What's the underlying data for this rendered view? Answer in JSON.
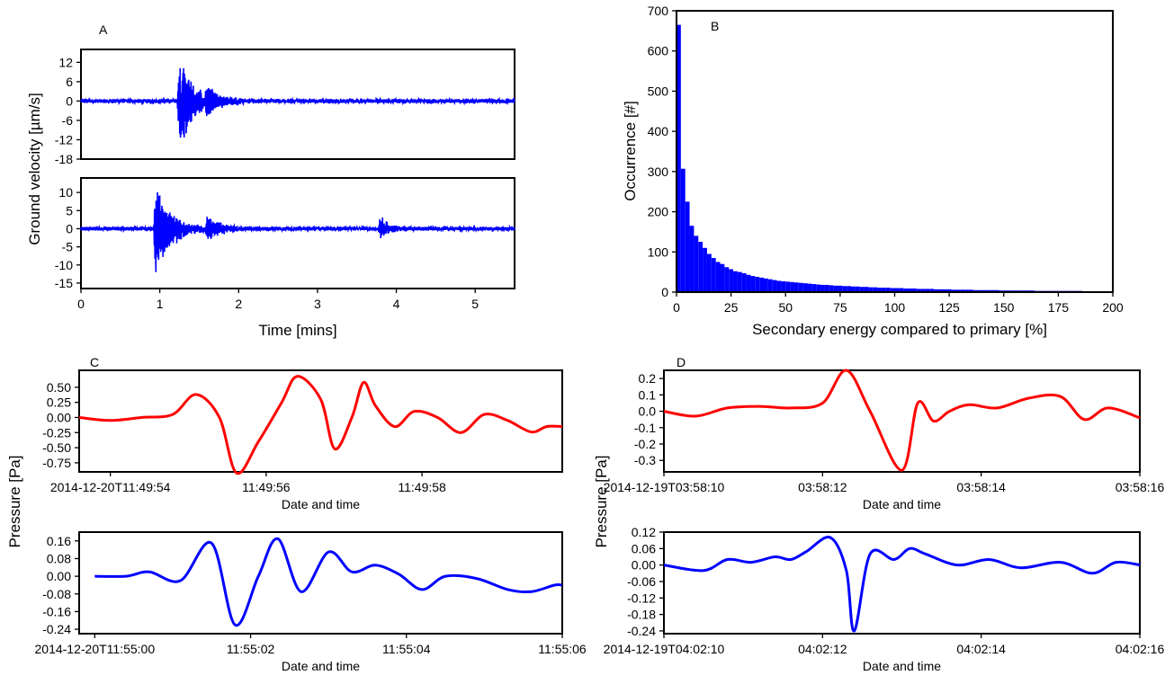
{
  "panels": {
    "a": "A",
    "b": "B",
    "c": "C",
    "d": "D"
  },
  "colors": {
    "blue": "#0000ff",
    "red": "#ff0000",
    "axis": "#000000"
  },
  "chart_data": [
    {
      "id": "A1",
      "type": "line",
      "color": "#0000ff",
      "ylabel": "Ground velocity [µm/s]",
      "xlim": [
        0,
        5.5
      ],
      "ylim": [
        -18,
        16
      ],
      "yticks": [
        -18,
        -12,
        -6,
        0,
        6,
        12
      ],
      "x_unit": "mins",
      "events": [
        {
          "t": 1.25,
          "amp_pos": 14,
          "amp_neg": -17,
          "decay": 0.18
        },
        {
          "t": 1.6,
          "amp_pos": 4,
          "amp_neg": -4,
          "decay": 0.2
        }
      ],
      "noise_amplitude": 0.6
    },
    {
      "id": "A2",
      "type": "line",
      "color": "#0000ff",
      "xlabel": "Time [mins]",
      "xlim": [
        0,
        5.5
      ],
      "ylim": [
        -16.5,
        14
      ],
      "xticks": [
        0,
        1,
        2,
        3,
        4,
        5
      ],
      "yticks": [
        -15,
        -10,
        -5,
        0,
        5,
        10
      ],
      "x_unit": "mins",
      "events": [
        {
          "t": 0.95,
          "amp_pos": 12,
          "amp_neg": -15,
          "decay": 0.2
        },
        {
          "t": 1.6,
          "amp_pos": 3,
          "amp_neg": -3,
          "decay": 0.2
        },
        {
          "t": 3.8,
          "amp_pos": 3.5,
          "amp_neg": -3,
          "decay": 0.12
        }
      ],
      "noise_amplitude": 0.5
    },
    {
      "id": "B",
      "type": "bar",
      "color": "#0000ff",
      "xlabel": "Secondary energy compared to primary [%]",
      "ylabel": "Occurrence [#]",
      "xlim": [
        0,
        200
      ],
      "ylim": [
        0,
        700
      ],
      "xticks": [
        0,
        25,
        50,
        75,
        100,
        125,
        150,
        175,
        200
      ],
      "yticks": [
        0,
        100,
        200,
        300,
        400,
        500,
        600,
        700
      ],
      "bin_width": 2,
      "values": [
        665,
        307,
        225,
        165,
        140,
        125,
        110,
        95,
        85,
        75,
        70,
        62,
        57,
        52,
        50,
        47,
        43,
        40,
        38,
        36,
        34,
        32,
        30,
        28,
        27,
        26,
        25,
        24,
        23,
        22,
        21,
        20,
        19,
        18,
        18,
        17,
        16,
        16,
        15,
        15,
        14,
        14,
        13,
        13,
        12,
        12,
        11,
        11,
        11,
        10,
        10,
        10,
        9,
        9,
        9,
        8,
        8,
        8,
        8,
        7,
        7,
        7,
        7,
        6,
        6,
        6,
        6,
        6,
        5,
        5,
        5,
        5,
        5,
        5,
        4,
        4,
        4,
        4,
        4,
        4,
        4,
        4,
        3,
        3,
        3,
        3,
        3,
        3,
        3,
        3,
        3,
        3,
        3,
        2,
        2,
        2,
        2,
        2,
        2,
        2
      ]
    },
    {
      "id": "C1",
      "type": "line",
      "color": "#ff0000",
      "ylabel": "Pressure [Pa]",
      "xlabel": "Date and time",
      "xlim": [
        -0.2,
        6.0
      ],
      "ylim": [
        -0.9,
        0.78
      ],
      "x_values_unit": "seconds after 2014-12-20T11:49:53.8",
      "x": [
        -0.2,
        0.2,
        0.6,
        1.0,
        1.3,
        1.6,
        1.82,
        2.1,
        2.4,
        2.6,
        2.9,
        3.08,
        3.3,
        3.45,
        3.6,
        3.85,
        4.1,
        4.4,
        4.7,
        5.0,
        5.3,
        5.6,
        5.8,
        6.0
      ],
      "values": [
        0.0,
        -0.05,
        0.0,
        0.05,
        0.38,
        0.0,
        -0.92,
        -0.4,
        0.25,
        0.68,
        0.3,
        -0.52,
        0.0,
        0.58,
        0.2,
        -0.15,
        0.1,
        0.0,
        -0.25,
        0.05,
        -0.05,
        -0.24,
        -0.15,
        -0.15
      ],
      "yticks": [
        -0.75,
        -0.5,
        -0.25,
        0.0,
        0.25,
        0.5
      ],
      "ytick_labels": [
        "-0.75",
        "-0.50",
        "-0.25",
        "0.00",
        "0.25",
        "0.50"
      ],
      "xtick_positions": [
        0.2,
        2.2,
        4.2
      ],
      "xtick_labels": [
        "2014-12-20T11:49:54",
        "11:49:56",
        "11:49:58"
      ]
    },
    {
      "id": "C2",
      "type": "line",
      "color": "#0000ff",
      "xlabel": "Date and time",
      "xlim": [
        -0.2,
        6.0
      ],
      "ylim": [
        -0.26,
        0.2
      ],
      "x_values_unit": "seconds after 2014-12-20T11:55:00",
      "x": [
        0.0,
        0.4,
        0.7,
        1.1,
        1.5,
        1.8,
        2.1,
        2.35,
        2.65,
        3.0,
        3.3,
        3.6,
        3.9,
        4.2,
        4.5,
        4.9,
        5.3,
        5.6,
        5.9,
        6.0
      ],
      "values": [
        0.0,
        0.0,
        0.02,
        -0.02,
        0.15,
        -0.22,
        0.0,
        0.17,
        -0.07,
        0.11,
        0.02,
        0.05,
        0.01,
        -0.06,
        0.0,
        -0.01,
        -0.06,
        -0.07,
        -0.04,
        -0.04
      ],
      "yticks": [
        -0.24,
        -0.16,
        -0.08,
        0.0,
        0.08,
        0.16
      ],
      "ytick_labels": [
        "-0.24",
        "-0.16",
        "-0.08",
        "0.00",
        "0.08",
        "0.16"
      ],
      "xtick_positions": [
        0.0,
        2.0,
        4.0,
        6.0
      ],
      "xtick_labels": [
        "2014-12-20T11:55:00",
        "11:55:02",
        "11:55:04",
        "11:55:06"
      ]
    },
    {
      "id": "D1",
      "type": "line",
      "color": "#ff0000",
      "xlabel": "Date and time",
      "xlim": [
        0.0,
        6.0
      ],
      "ylim": [
        -0.37,
        0.25
      ],
      "x_values_unit": "seconds after 2014-12-19T03:58:10",
      "x": [
        0.0,
        0.4,
        0.8,
        1.2,
        1.6,
        2.0,
        2.3,
        2.6,
        3.0,
        3.2,
        3.4,
        3.6,
        3.85,
        4.2,
        4.6,
        5.0,
        5.3,
        5.6,
        6.0
      ],
      "values": [
        0.0,
        -0.03,
        0.02,
        0.03,
        0.02,
        0.05,
        0.25,
        0.0,
        -0.36,
        0.05,
        -0.06,
        0.0,
        0.04,
        0.02,
        0.08,
        0.09,
        -0.05,
        0.02,
        -0.04
      ],
      "yticks": [
        -0.3,
        -0.2,
        -0.1,
        0.0,
        0.1,
        0.2
      ],
      "ytick_labels": [
        "-0.3",
        "-0.2",
        "-0.1",
        "0.0",
        "0.1",
        "0.2"
      ],
      "xtick_positions": [
        0.0,
        2.0,
        4.0,
        6.0
      ],
      "xtick_labels": [
        "2014-12-19T03:58:10",
        "03:58:12",
        "03:58:14",
        "03:58:16"
      ]
    },
    {
      "id": "D2",
      "type": "line",
      "color": "#0000ff",
      "ylabel": "Pressure [Pa]",
      "xlabel": "Date and time",
      "xlim": [
        0.0,
        6.0
      ],
      "ylim": [
        -0.25,
        0.12
      ],
      "x_values_unit": "seconds after 2014-12-19T04:02:10",
      "x": [
        0.0,
        0.5,
        0.8,
        1.1,
        1.4,
        1.6,
        1.8,
        2.1,
        2.3,
        2.4,
        2.6,
        2.9,
        3.1,
        3.3,
        3.7,
        4.1,
        4.5,
        5.0,
        5.4,
        5.7,
        6.0
      ],
      "values": [
        0.0,
        -0.02,
        0.02,
        0.01,
        0.03,
        0.02,
        0.05,
        0.1,
        -0.02,
        -0.24,
        0.04,
        0.02,
        0.06,
        0.04,
        0.0,
        0.02,
        -0.01,
        0.01,
        -0.03,
        0.01,
        0.0
      ],
      "yticks": [
        -0.24,
        -0.18,
        -0.12,
        -0.06,
        0.0,
        0.06,
        0.12
      ],
      "ytick_labels": [
        "-0.24",
        "-0.18",
        "-0.12",
        "-0.06",
        "0.00",
        "0.06",
        "0.12"
      ],
      "xtick_positions": [
        0.0,
        2.0,
        4.0,
        6.0
      ],
      "xtick_labels": [
        "2014-12-19T04:02:10",
        "04:02:12",
        "04:02:14",
        "04:02:16"
      ]
    }
  ]
}
